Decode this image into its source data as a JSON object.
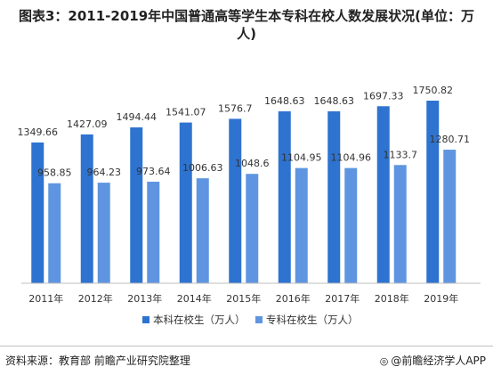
{
  "chart_data": {
    "type": "bar",
    "title": "图表3：2011-2019年中国普通高等学生本专科在校人数发展状况(单位：万人)",
    "categories": [
      "2011年",
      "2012年",
      "2013年",
      "2014年",
      "2015年",
      "2016年",
      "2017年",
      "2018年",
      "2019年"
    ],
    "series": [
      {
        "name": "本科在校生（万人）",
        "color": "#2e73cf",
        "values": [
          1349.66,
          1427.09,
          1494.44,
          1541.07,
          1576.7,
          1648.63,
          1648.63,
          1697.33,
          1750.82
        ]
      },
      {
        "name": "专科在校生（万人）",
        "color": "#5f95e0",
        "values": [
          958.85,
          964.23,
          973.64,
          1006.63,
          1048.6,
          1104.95,
          1104.96,
          1133.7,
          1280.71
        ]
      }
    ],
    "data_labels": [
      [
        "1349.66",
        "1427.09",
        "1494.44",
        "1541.07",
        "1576.7",
        "1648.63",
        "1648.63",
        "1697.33",
        "1750.82"
      ],
      [
        "958.85",
        "964.23",
        "973.64",
        "1006.63",
        "1048.6",
        "1104.95",
        "1104.96",
        "1133.7",
        "1280.71"
      ]
    ],
    "ylim": [
      0,
      2000
    ],
    "grid": false,
    "legend": "bottom-center"
  },
  "footer": {
    "source": "资料来源：教育部 前瞻产业研究院整理",
    "brand": "@前瞻经济学人APP"
  }
}
